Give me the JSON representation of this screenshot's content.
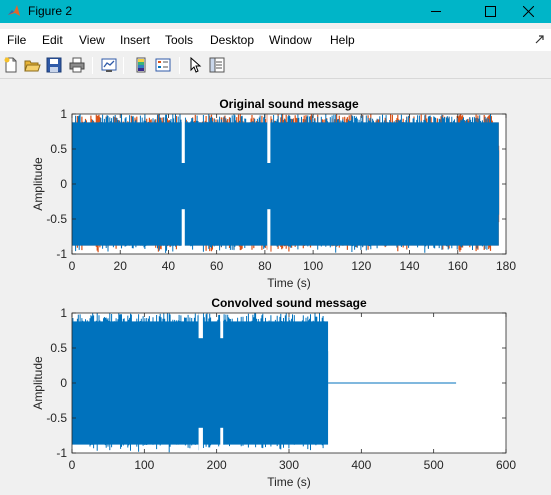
{
  "window": {
    "title": "Figure 2",
    "controls": [
      "minimize-icon",
      "maximize-icon",
      "close-icon"
    ]
  },
  "menu": {
    "items": [
      "File",
      "Edit",
      "View",
      "Insert",
      "Tools",
      "Desktop",
      "Window",
      "Help"
    ]
  },
  "toolbar": {
    "icons": [
      "new-figure-icon",
      "open-file-icon",
      "save-icon",
      "print-icon",
      "link-plot-icon",
      "insert-colorbar-icon",
      "insert-legend-icon",
      "edit-plot-icon",
      "property-inspector-icon"
    ]
  },
  "chart_data": [
    {
      "type": "line",
      "title": "Original sound message",
      "xlabel": "Time (s)",
      "ylabel": "Amplitude",
      "xlim": [
        0,
        180
      ],
      "ylim": [
        -1,
        1
      ],
      "xticks": [
        0,
        20,
        40,
        60,
        80,
        100,
        120,
        140,
        160,
        180
      ],
      "yticks": [
        -1,
        -0.5,
        0,
        0.5,
        1
      ],
      "series": [
        {
          "color": "#d95319",
          "x_range": [
            0,
            177
          ],
          "amplitude_envelope": [
            -1,
            1
          ]
        },
        {
          "color": "#0072bd",
          "x_range": [
            0,
            177
          ],
          "amplitude_envelope": [
            -1,
            1
          ]
        }
      ],
      "grid": false
    },
    {
      "type": "line",
      "title": "Convolved sound message",
      "xlabel": "Time (s)",
      "ylabel": "Amplitude",
      "xlim": [
        0,
        600
      ],
      "ylim": [
        -1,
        1
      ],
      "xticks": [
        0,
        100,
        200,
        300,
        400,
        500,
        600
      ],
      "yticks": [
        -1,
        -0.5,
        0,
        0.5,
        1
      ],
      "series": [
        {
          "color": "#0072bd",
          "x_range": [
            0,
            354
          ],
          "amplitude_envelope": [
            -1,
            1
          ],
          "tail_x_range": [
            354,
            531
          ],
          "tail_value": 0
        }
      ],
      "grid": false
    }
  ]
}
